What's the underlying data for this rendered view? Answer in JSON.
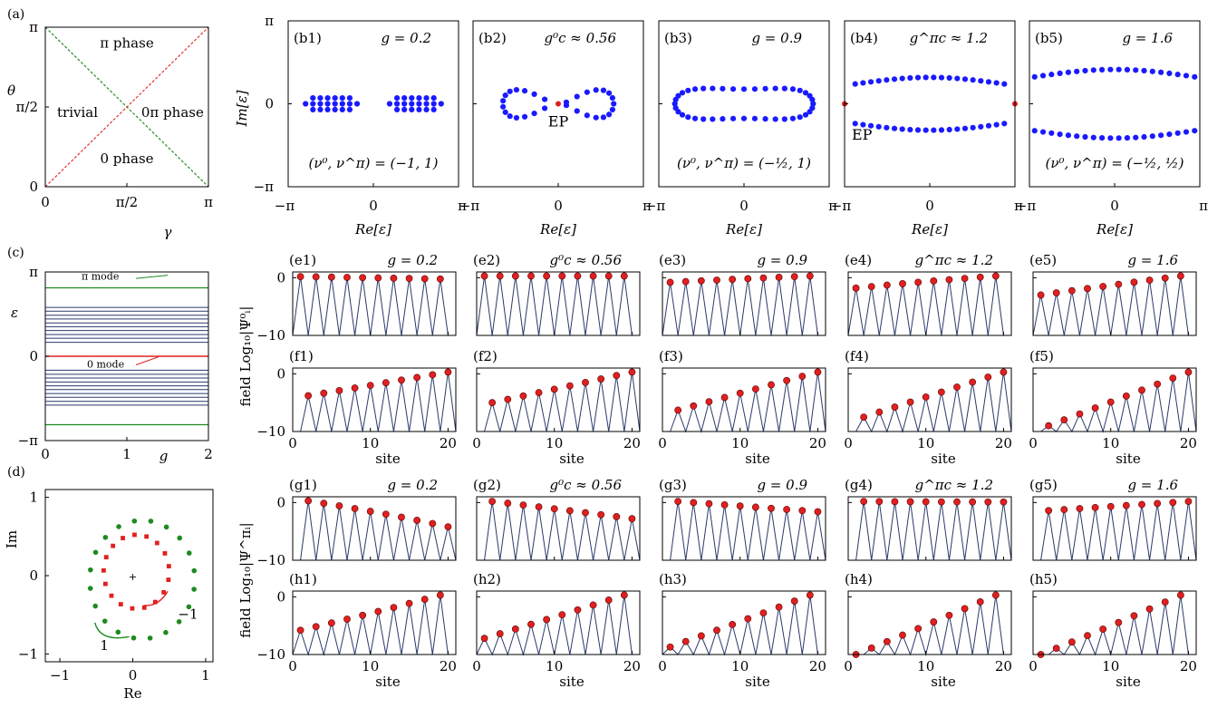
{
  "chart_data": [
    {
      "id": "a",
      "type": "phase-diagram",
      "label": "(a)",
      "xlabel": "γ",
      "ylabel": "θ",
      "xticks": [
        "0",
        "π/2",
        "π"
      ],
      "yticks": [
        "0",
        "π/2",
        "π"
      ],
      "xlim": [
        0,
        3.1416
      ],
      "ylim": [
        0,
        3.1416
      ],
      "lines": [
        {
          "color": "#2a8a2a",
          "style": "dashed",
          "from": [
            0,
            3.1416
          ],
          "to": [
            3.1416,
            0
          ]
        },
        {
          "color": "#e03030",
          "style": "dashed",
          "from": [
            0,
            0
          ],
          "to": [
            3.1416,
            3.1416
          ]
        }
      ],
      "regions": [
        {
          "text": "π phase",
          "at": [
            1.571,
            2.83
          ]
        },
        {
          "text": "trivial",
          "at": [
            0.62,
            1.46
          ]
        },
        {
          "text": "0π phase",
          "at": [
            2.45,
            1.46
          ]
        },
        {
          "text": "0 phase",
          "at": [
            1.571,
            0.55
          ]
        }
      ]
    },
    {
      "id": "b",
      "type": "scatter-spectrum",
      "xlabel": "Re[ε]",
      "ylabel": "Im[ε]",
      "xticks": [
        "−π",
        "0",
        "π"
      ],
      "yticks": [
        "−π",
        "0",
        "π"
      ],
      "xlim": [
        -3.1416,
        3.1416
      ],
      "ylim": [
        -3.1416,
        3.1416
      ],
      "ep_label": "EP",
      "panels": [
        {
          "label": "(b1)",
          "g": "g = 0.2",
          "inv": "(ν⁰, ν^π) = (−1, 1)"
        },
        {
          "label": "(b2)",
          "g": "g⁰c ≈ 0.56",
          "ep": [
            [
              0.0,
              0.0
            ]
          ]
        },
        {
          "label": "(b3)",
          "g": "g = 0.9",
          "inv": "(ν⁰, ν^π) = (−½, 1)"
        },
        {
          "label": "(b4)",
          "g": "g^πc ≈ 1.2",
          "ep": [
            [
              -3.1416,
              0.0
            ],
            [
              3.1416,
              0.0
            ]
          ]
        },
        {
          "label": "(b5)",
          "g": "g = 1.6",
          "inv": "(ν⁰, ν^π) = (−½, ½)"
        }
      ]
    },
    {
      "id": "c",
      "type": "level-spectrum",
      "label": "(c)",
      "xlabel": "g",
      "ylabel": "ε",
      "xticks": [
        "0",
        "1",
        "2"
      ],
      "yticks": [
        "−π",
        "0",
        "π"
      ],
      "xlim": [
        0,
        2
      ],
      "ylim": [
        -3.1416,
        3.1416
      ],
      "pi_mode": "π mode",
      "zero_mode": "0 mode",
      "pi_level": 2.55,
      "zero_level": 0.0,
      "bulk_levels": [
        0.52,
        0.67,
        0.81,
        0.96,
        1.1,
        1.24,
        1.39,
        1.53,
        1.68,
        1.82
      ]
    },
    {
      "id": "d",
      "type": "scatter-complex",
      "label": "(d)",
      "xlabel": "Re",
      "ylabel": "Im",
      "xticks": [
        "−1",
        "0",
        "1"
      ],
      "yticks": [
        "−1",
        "0",
        "1"
      ],
      "xlim": [
        -1.2,
        1.1
      ],
      "ylim": [
        -1.1,
        1.1
      ],
      "winding_red": "−1",
      "winding_green": "1",
      "series": [
        {
          "name": "red",
          "center": [
            0.05,
            0.05
          ],
          "radius": 0.45,
          "count": 17,
          "color": "#e02020"
        },
        {
          "name": "green",
          "center": [
            0.13,
            -0.05
          ],
          "radius": 0.72,
          "count": 20,
          "color": "#1f8a1f"
        }
      ]
    },
    {
      "id": "ef",
      "type": "site-profile",
      "xlabel": "site",
      "ylabel_top": "Log₁₀|Ψ⁰ᵢ|",
      "ylabel_prefix": "field",
      "xticks": [
        "0",
        "10",
        "20"
      ],
      "yticks": [
        "0",
        "−10"
      ],
      "ylim": [
        -10,
        1
      ],
      "panels": [
        {
          "label": "(e1)",
          "g": "g = 0.2",
          "odd": true,
          "v": [
            0.2,
            -0.01,
            -0.22
          ]
        },
        {
          "label": "(e2)",
          "g": "g⁰c ≈ 0.56",
          "odd": true,
          "v": [
            0.3,
            0.3,
            0.3
          ]
        },
        {
          "label": "(e3)",
          "g": "g = 0.9",
          "odd": true,
          "v": [
            -0.8,
            -0.2,
            0.3
          ]
        },
        {
          "label": "(e4)",
          "g": "g^πc ≈ 1.2",
          "odd": true,
          "v": [
            -1.8,
            -0.6,
            0.3
          ]
        },
        {
          "label": "(e5)",
          "g": "g = 1.6",
          "odd": true,
          "v": [
            -3.0,
            -1.3,
            0.3
          ]
        },
        {
          "label": "(f1)",
          "odd": false,
          "v": [
            -3.8,
            -1.8,
            0.3
          ]
        },
        {
          "label": "(f2)",
          "odd": false,
          "v": [
            -5.0,
            -2.4,
            0.3
          ]
        },
        {
          "label": "(f3)",
          "odd": false,
          "v": [
            -6.3,
            -3.0,
            0.3
          ]
        },
        {
          "label": "(f4)",
          "odd": false,
          "v": [
            -7.5,
            -3.6,
            0.3
          ]
        },
        {
          "label": "(f5)",
          "odd": false,
          "v": [
            -9.0,
            -4.4,
            0.3
          ]
        }
      ]
    },
    {
      "id": "gh",
      "type": "site-profile",
      "xlabel": "site",
      "ylabel_top": "Log₁₀|Ψ^πᵢ|",
      "ylabel_prefix": "field",
      "xticks": [
        "0",
        "10",
        "20"
      ],
      "yticks": [
        "0",
        "−10"
      ],
      "ylim": [
        -10,
        1
      ],
      "panels": [
        {
          "label": "(g1)",
          "g": "g = 0.2",
          "odd": false,
          "v": [
            0.3,
            -1.6,
            -4.2
          ]
        },
        {
          "label": "(g2)",
          "g": "g⁰c ≈ 0.56",
          "odd": false,
          "v": [
            0.2,
            -1.2,
            -2.8
          ]
        },
        {
          "label": "(g3)",
          "g": "g = 0.9",
          "odd": false,
          "v": [
            0.2,
            -0.7,
            -1.6
          ]
        },
        {
          "label": "(g4)",
          "g": "g^πc ≈ 1.2",
          "odd": false,
          "v": [
            0.2,
            0.1,
            0.1
          ]
        },
        {
          "label": "(g5)",
          "g": "g = 1.6",
          "odd": false,
          "v": [
            -1.4,
            -0.6,
            0.2
          ]
        },
        {
          "label": "(h1)",
          "odd": true,
          "v": [
            -5.8,
            -3.0,
            0.3
          ]
        },
        {
          "label": "(h2)",
          "odd": true,
          "v": [
            -7.2,
            -3.6,
            0.3
          ]
        },
        {
          "label": "(h3)",
          "odd": true,
          "v": [
            -8.7,
            -4.4,
            0.3
          ]
        },
        {
          "label": "(h4)",
          "odd": true,
          "v": [
            -10.0,
            -5.0,
            0.3
          ]
        },
        {
          "label": "(h5)",
          "odd": true,
          "v": [
            -10.0,
            -5.2,
            0.3
          ]
        }
      ]
    }
  ]
}
